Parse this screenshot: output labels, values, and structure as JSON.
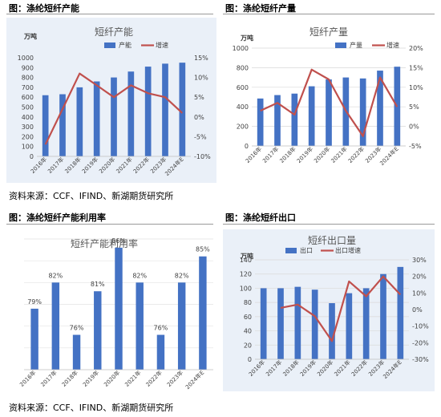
{
  "headers": {
    "top_left": "图：涤纶短纤产能",
    "top_right": "图：涤纶短纤产量",
    "bottom_left": "图：涤纶短纤产能利用率",
    "bottom_right": "图：涤纶短纤出口"
  },
  "sources": {
    "top": "资料来源：CCF、IFIND、新湖期货研究所",
    "bottom": "资料来源：CCF、IFIND、新湖期货研究所"
  },
  "colors": {
    "bar": "#4472c4",
    "line": "#c0504d",
    "panel_shade": "#eaf0f8"
  },
  "chart_data": [
    {
      "type": "bar+line",
      "title": "短纤产能",
      "unit_label": "万吨",
      "categories": [
        "2016年",
        "2017年",
        "2018年",
        "2019年",
        "2020年",
        "2021年",
        "2022年",
        "2023年",
        "2024年E"
      ],
      "series": [
        {
          "name": "产能",
          "kind": "bar",
          "axis": "left",
          "values": [
            620,
            630,
            700,
            760,
            800,
            860,
            910,
            940,
            950
          ]
        },
        {
          "name": "增速",
          "kind": "line",
          "axis": "right",
          "values": [
            -7,
            2,
            11,
            8,
            5,
            8,
            6,
            5,
            1
          ]
        }
      ],
      "ylim": [
        0,
        1000
      ],
      "yticks": [
        "0",
        "100",
        "200",
        "300",
        "400",
        "500",
        "600",
        "700",
        "800",
        "900",
        "1000"
      ],
      "y2lim": [
        -10,
        15
      ],
      "y2ticks": [
        "-10%",
        "-5%",
        "0%",
        "5%",
        "10%",
        "15%"
      ],
      "legend": "top-center",
      "grid": false
    },
    {
      "type": "bar+line",
      "title": "短纤产量",
      "unit_label": "万吨",
      "categories": [
        "2016年",
        "2017年",
        "2018年",
        "2019年",
        "2020年",
        "2021年",
        "2022年",
        "2023年",
        "2024年E"
      ],
      "series": [
        {
          "name": "产量",
          "kind": "bar",
          "axis": "left",
          "values": [
            485,
            520,
            535,
            610,
            680,
            700,
            690,
            770,
            810
          ]
        },
        {
          "name": "增速",
          "kind": "line",
          "axis": "right",
          "values": [
            4,
            6,
            3,
            14.5,
            12,
            4,
            -2.5,
            12.5,
            5
          ]
        }
      ],
      "ylim": [
        0,
        1000
      ],
      "yticks": [
        "0",
        "200",
        "400",
        "600",
        "800",
        "1000"
      ],
      "y2lim": [
        -5,
        20
      ],
      "y2ticks": [
        "-5%",
        "0%",
        "5%",
        "10%",
        "15%",
        "20%"
      ],
      "legend": "top-right",
      "grid": true
    },
    {
      "type": "bar",
      "title": "短纤产能利用率",
      "categories": [
        "2016年",
        "2017年",
        "2018年",
        "2019年",
        "2020年",
        "2021年",
        "2022年",
        "2023年",
        "2024年E"
      ],
      "values": [
        79,
        82,
        76,
        81,
        86,
        82,
        76,
        82,
        85
      ],
      "data_labels": [
        "79%",
        "82%",
        "76%",
        "81%",
        "86%",
        "82%",
        "76%",
        "82%",
        "85%"
      ],
      "ylim": [
        72,
        87
      ],
      "grid": true
    },
    {
      "type": "bar+line",
      "title": "短纤出口量",
      "unit_label": "万吨",
      "categories": [
        "2016年",
        "2017年",
        "2018年",
        "2019年",
        "2020年",
        "2021年",
        "2022年",
        "2023年",
        "2024年E"
      ],
      "series": [
        {
          "name": "出口",
          "kind": "bar",
          "axis": "left",
          "values": [
            100,
            100,
            102,
            98,
            79,
            93,
            100,
            120,
            130
          ]
        },
        {
          "name": "出口增速",
          "kind": "line",
          "axis": "right",
          "values": [
            null,
            1,
            3,
            -4,
            -19,
            17,
            8,
            20,
            9
          ]
        }
      ],
      "ylim": [
        0,
        140
      ],
      "yticks": [
        "0",
        "20",
        "40",
        "60",
        "80",
        "100",
        "120",
        "140"
      ],
      "y2lim": [
        -30,
        30
      ],
      "y2ticks": [
        "-30%",
        "-20%",
        "-10%",
        "0%",
        "10%",
        "20%",
        "30%"
      ],
      "legend": "top-center",
      "grid": true
    }
  ]
}
